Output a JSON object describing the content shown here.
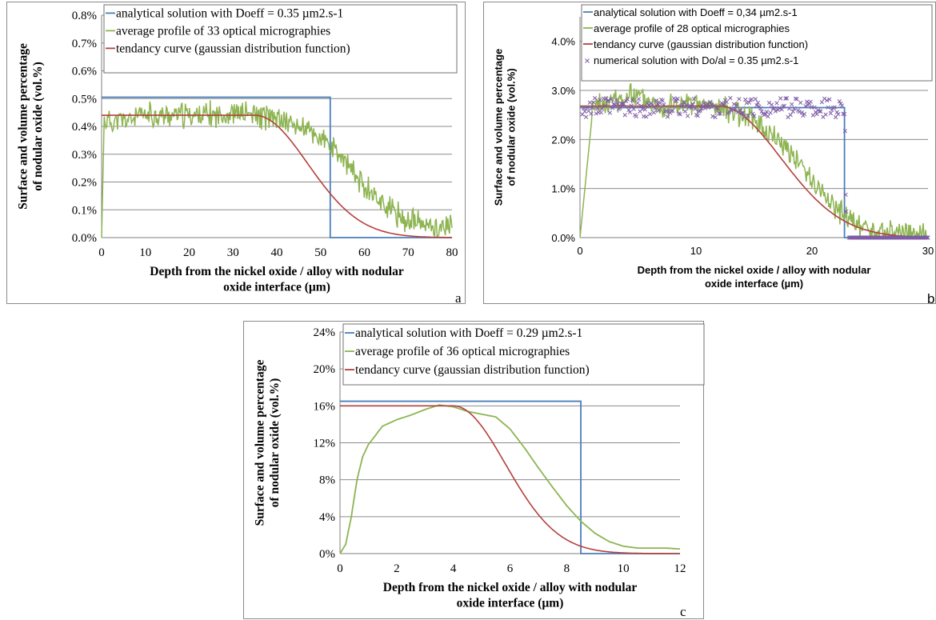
{
  "chart_data": [
    {
      "panel_letter": "a",
      "type": "line",
      "font": "serif",
      "ylabel_lines": [
        "Surface and volume percentage",
        "of nodular oxide (vol.%)"
      ],
      "xlabel_lines": [
        "Depth from the nickel oxide / alloy with nodular",
        "oxide interface (µm)"
      ],
      "xlim": [
        0,
        80
      ],
      "ylim": [
        0,
        0.8
      ],
      "xticks": [
        "0",
        "10",
        "20",
        "30",
        "40",
        "50",
        "60",
        "70",
        "80"
      ],
      "yticks": [
        "0.0%",
        "0.1%",
        "0.2%",
        "0.3%",
        "0.4%",
        "0.5%",
        "0.6%",
        "0.7%",
        "0.8%"
      ],
      "grid": "horizontal",
      "legend_position": "top-right",
      "colors": {
        "analytical": "#4a7ebb",
        "average": "#8db451",
        "tendency": "#b3403d"
      },
      "series": [
        {
          "name": "analytical solution with Doeff = 0.35 µm2.s-1",
          "kind": "step",
          "level": 0.505,
          "end": 52.2
        },
        {
          "name": "average profile of 33 optical micrographies",
          "kind": "noisy-profile",
          "rise_end": 0.6,
          "x": [
            0.6,
            5,
            10,
            15,
            20,
            25,
            30,
            35,
            40,
            45,
            50,
            55,
            60,
            65,
            70,
            75,
            80
          ],
          "y": [
            0.42,
            0.42,
            0.44,
            0.44,
            0.44,
            0.44,
            0.45,
            0.44,
            0.43,
            0.4,
            0.36,
            0.28,
            0.19,
            0.11,
            0.06,
            0.04,
            0.04
          ]
        },
        {
          "name": "tendancy curve (gaussian distribution function)",
          "kind": "gaussian-plateau",
          "amplitude": 0.44,
          "flat_until": 35,
          "sigma": 17
        }
      ]
    },
    {
      "panel_letter": "b",
      "type": "line",
      "font": "sans",
      "ylabel_lines": [
        "Surface and volume percentage",
        "of nodular oxide (vol.%)"
      ],
      "xlabel_lines": [
        "Depth from the nickel oxide / alloy with nodular",
        "oxide interface (µm)"
      ],
      "xlim": [
        0,
        30
      ],
      "ylim": [
        0,
        0.045
      ],
      "yticks_values": [
        0,
        0.01,
        0.02,
        0.03,
        0.04
      ],
      "xticks": [
        "0",
        "10",
        "20",
        "30"
      ],
      "yticks": [
        "0.0%",
        "1.0%",
        "2.0%",
        "3.0%",
        "4.0%"
      ],
      "grid": "horizontal",
      "legend_position": "top-right",
      "colors": {
        "analytical": "#4a7ebb",
        "average": "#8db451",
        "tendency": "#b3403d",
        "numerical": "#7f5ca6"
      },
      "series": [
        {
          "name": "analytical solution with Doeff = 0,34 µm2.s-1",
          "kind": "step",
          "level": 0.0265,
          "end": 22.8
        },
        {
          "name": "average profile of 28 optical micrographies",
          "kind": "noisy-profile",
          "rise_end": 1.0,
          "x": [
            1,
            3,
            5,
            7,
            9,
            11,
            13,
            15,
            16,
            17,
            18,
            19,
            20,
            21,
            22,
            23,
            24,
            26,
            28,
            30
          ],
          "y": [
            0.026,
            0.028,
            0.029,
            0.027,
            0.027,
            0.027,
            0.026,
            0.024,
            0.022,
            0.02,
            0.018,
            0.015,
            0.012,
            0.009,
            0.006,
            0.004,
            0.002,
            0.001,
            0.0008,
            0.0004
          ]
        },
        {
          "name": "tendancy curve (gaussian distribution function)",
          "kind": "gaussian-plateau",
          "amplitude": 0.0268,
          "flat_until": 12,
          "sigma": 7.5
        },
        {
          "name": "numerical solution with Do/al = 0.35 µm2.s-1",
          "kind": "scatter",
          "level": 0.0265,
          "end": 22.8,
          "tail_end": 30
        }
      ]
    },
    {
      "panel_letter": "c",
      "type": "line",
      "font": "serif",
      "ylabel_lines": [
        "Surface and volume percentage",
        "of nodular oxide (vol.%)"
      ],
      "xlabel_lines": [
        "Depth from the nickel oxide / alloy with nodular",
        "oxide interface (µm)"
      ],
      "xlim": [
        0,
        12
      ],
      "ylim": [
        0,
        0.24
      ],
      "yticks_values": [
        0,
        0.04,
        0.08,
        0.12,
        0.16,
        0.2,
        0.24
      ],
      "xticks": [
        "0",
        "2",
        "4",
        "6",
        "8",
        "10",
        "12"
      ],
      "yticks": [
        "0%",
        "4%",
        "8%",
        "12%",
        "16%",
        "20%",
        "24%"
      ],
      "grid": "horizontal",
      "legend_position": "top-right",
      "colors": {
        "analytical": "#4a7ebb",
        "average": "#8db451",
        "tendency": "#b3403d"
      },
      "series": [
        {
          "name": "analytical solution with Doeff = 0.29 µm2.s-1",
          "kind": "step",
          "level": 0.165,
          "end": 8.5
        },
        {
          "name": "average profile of 36 optical micrographies",
          "kind": "smooth-profile",
          "x": [
            0,
            0.2,
            0.4,
            0.6,
            0.8,
            1.0,
            1.5,
            2.0,
            2.5,
            3.0,
            3.5,
            4.0,
            4.5,
            5.0,
            5.5,
            6.0,
            6.5,
            7.0,
            7.5,
            8.0,
            8.5,
            9.0,
            9.5,
            10.0,
            10.5,
            11.0,
            11.5,
            12.0
          ],
          "y": [
            0.0,
            0.01,
            0.04,
            0.08,
            0.105,
            0.118,
            0.138,
            0.145,
            0.15,
            0.156,
            0.161,
            0.159,
            0.154,
            0.151,
            0.148,
            0.135,
            0.115,
            0.093,
            0.072,
            0.052,
            0.035,
            0.022,
            0.013,
            0.008,
            0.006,
            0.006,
            0.006,
            0.005
          ]
        },
        {
          "name": "tendancy curve (gaussian distribution function)",
          "kind": "gaussian-plateau",
          "amplitude": 0.16,
          "flat_until": 4.0,
          "sigma": 2.6
        }
      ]
    }
  ]
}
